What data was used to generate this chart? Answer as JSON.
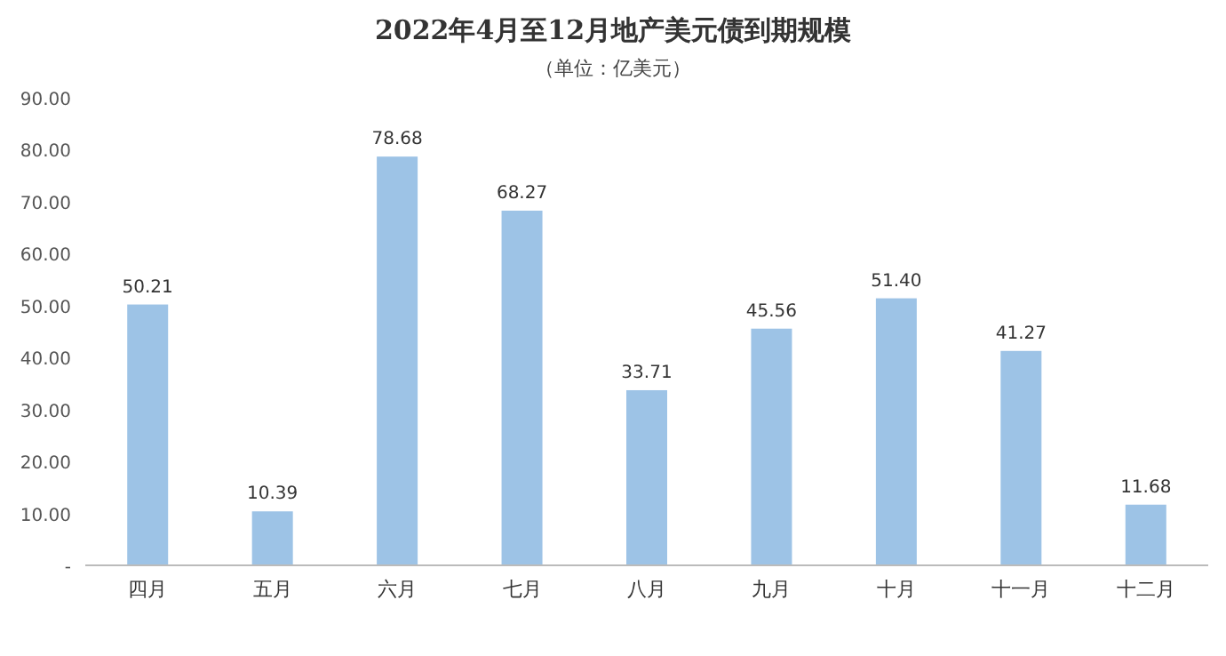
{
  "chart_data": {
    "type": "bar",
    "title": "2022年4月至12月地产美元债到期规模",
    "subtitle": "（单位：亿美元）",
    "categories": [
      "四月",
      "五月",
      "六月",
      "七月",
      "八月",
      "九月",
      "十月",
      "十一月",
      "十二月"
    ],
    "values": [
      50.21,
      10.39,
      78.68,
      68.27,
      33.71,
      45.56,
      51.4,
      41.27,
      11.68
    ],
    "value_labels": [
      "50.21",
      "10.39",
      "78.68",
      "68.27",
      "33.71",
      "45.56",
      "51.40",
      "41.27",
      "11.68"
    ],
    "color": "#9dc3e6",
    "grid": false,
    "ylim": [
      0,
      90
    ],
    "yticks": [
      {
        "value": 0,
        "label": "-"
      },
      {
        "value": 10,
        "label": "10.00"
      },
      {
        "value": 20,
        "label": "20.00"
      },
      {
        "value": 30,
        "label": "30.00"
      },
      {
        "value": 40,
        "label": "40.00"
      },
      {
        "value": 50,
        "label": "50.00"
      },
      {
        "value": 60,
        "label": "60.00"
      },
      {
        "value": 70,
        "label": "70.00"
      },
      {
        "value": 80,
        "label": "80.00"
      },
      {
        "value": 90,
        "label": "90.00"
      }
    ]
  }
}
